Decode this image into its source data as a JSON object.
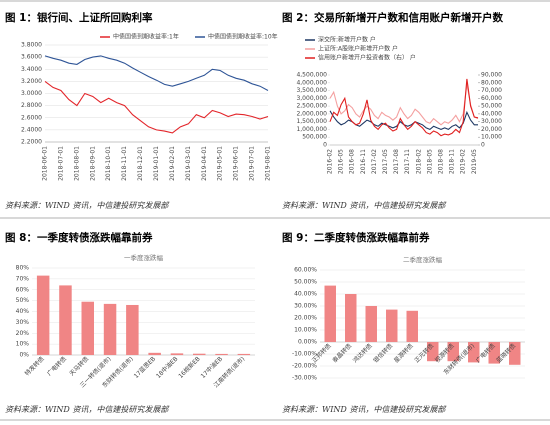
{
  "chart_data": [
    {
      "type": "line",
      "title": "图 1：银行间、上证所回购利率",
      "source": "资料来源：WIND 资讯，中信建投研究发展部",
      "grid": true,
      "legend": "top",
      "categories": [
        "2018-06-01",
        null,
        "2018-07-01",
        null,
        "2018-08-01",
        null,
        "2018-09-01",
        null,
        "2018-10-01",
        null,
        "2018-11-01",
        null,
        "2018-12-01",
        null,
        "2019-01-01",
        null,
        "2019-02-01",
        null,
        "2019-03-01",
        null,
        "2019-04-01",
        null,
        "2019-05-01",
        null,
        "2019-06-01",
        null,
        "2019-07-01",
        null,
        "2019-08-01"
      ],
      "series": [
        {
          "name": "中债国债到期收益率:1年",
          "color": "#e3262b",
          "values": [
            3.2,
            3.1,
            3.05,
            2.9,
            2.8,
            3.0,
            2.95,
            2.85,
            2.92,
            2.85,
            2.8,
            2.65,
            2.55,
            2.45,
            2.4,
            2.38,
            2.35,
            2.45,
            2.5,
            2.65,
            2.6,
            2.72,
            2.68,
            2.62,
            2.66,
            2.65,
            2.62,
            2.58,
            2.62
          ]
        },
        {
          "name": "中债国债到期收益率:10年",
          "color": "#2f5597",
          "values": [
            3.62,
            3.58,
            3.55,
            3.5,
            3.48,
            3.56,
            3.6,
            3.62,
            3.58,
            3.55,
            3.5,
            3.42,
            3.35,
            3.28,
            3.22,
            3.15,
            3.12,
            3.16,
            3.2,
            3.25,
            3.3,
            3.4,
            3.38,
            3.3,
            3.25,
            3.22,
            3.16,
            3.12,
            3.05
          ]
        }
      ],
      "ylim": [
        2.2,
        3.8
      ],
      "yticks": [
        {
          "value": 2.2,
          "label": "2.2000"
        },
        {
          "value": 2.4,
          "label": "2.4000"
        },
        {
          "value": 2.6,
          "label": "2.6000"
        },
        {
          "value": 2.8,
          "label": "2.8000"
        },
        {
          "value": 3.0,
          "label": "3.0000"
        },
        {
          "value": 3.2,
          "label": "3.2000"
        },
        {
          "value": 3.4,
          "label": "3.4000"
        },
        {
          "value": 3.6,
          "label": "3.6000"
        },
        {
          "value": 3.8,
          "label": "3.8000"
        }
      ]
    },
    {
      "type": "line",
      "title": "图 2：交易所新增开户数和信用账户新增开户数",
      "source": "资料来源：WIND 资讯，中信建投研究发展部",
      "grid": false,
      "legend": "top-left",
      "categories": [
        "2016-02",
        null,
        null,
        "2016-05",
        null,
        null,
        "2016-08",
        null,
        null,
        "2016-11",
        null,
        null,
        "2017-02",
        null,
        null,
        "2017-05",
        null,
        null,
        "2017-08",
        null,
        null,
        "2017-11",
        null,
        null,
        "2018-02",
        null,
        null,
        "2018-05",
        null,
        null,
        "2018-08",
        null,
        null,
        "2018-11",
        null,
        null,
        "2019-02",
        null,
        null,
        "2019-05",
        null
      ],
      "series": [
        {
          "name": "深交所:新增开户数 户",
          "color": "#1f3864",
          "values": [
            2200000,
            1800000,
            1500000,
            1300000,
            1400000,
            1600000,
            1500000,
            1300000,
            1200000,
            1400000,
            1600000,
            1500000,
            1300000,
            1200000,
            1400000,
            1300000,
            1200000,
            1100000,
            1200000,
            1500000,
            1300000,
            1200000,
            1300000,
            1500000,
            1400000,
            1300000,
            1100000,
            1000000,
            1200000,
            1100000,
            1000000,
            1100000,
            1000000,
            1200000,
            1300000,
            1100000,
            1400000,
            2100000,
            1600000,
            1300000,
            1300000
          ]
        },
        {
          "name": "上证所:A股账户新增开户数 户",
          "color": "#f4a0a0",
          "values": [
            3000000,
            3400000,
            2500000,
            2000000,
            2200000,
            2600000,
            2400000,
            2000000,
            1800000,
            2200000,
            2500000,
            2300000,
            1900000,
            1700000,
            2100000,
            1900000,
            1800000,
            1600000,
            1800000,
            2400000,
            2000000,
            1700000,
            1900000,
            2300000,
            2100000,
            1800000,
            1500000,
            1400000,
            1700000,
            1500000,
            1300000,
            1500000,
            1400000,
            1600000,
            1900000,
            1500000,
            2000000,
            3900000,
            2600000,
            1800000,
            1700000
          ]
        },
        {
          "name": "信用账户新增开户投资者数（右） 户",
          "color": "#e02020",
          "axis": "y2",
          "values": [
            30000,
            42000,
            38000,
            52000,
            60000,
            36000,
            30000,
            26000,
            28000,
            40000,
            58000,
            32000,
            24000,
            20000,
            26000,
            28000,
            22000,
            18000,
            20000,
            34000,
            26000,
            20000,
            24000,
            30000,
            26000,
            22000,
            16000,
            14000,
            18000,
            16000,
            12000,
            14000,
            13000,
            15000,
            20000,
            16000,
            30000,
            85000,
            50000,
            36000,
            35000
          ]
        }
      ],
      "ylim": [
        0,
        4500000
      ],
      "yticks": [
        0,
        {
          "value": 500000,
          "label": "500,000"
        },
        {
          "value": 1000000,
          "label": "1,000,000"
        },
        {
          "value": 1500000,
          "label": "1,500,000"
        },
        {
          "value": 2000000,
          "label": "2,000,000"
        },
        {
          "value": 2500000,
          "label": "2,500,000"
        },
        {
          "value": 3000000,
          "label": "3,000,000"
        },
        {
          "value": 3500000,
          "label": "3,500,000"
        },
        {
          "value": 4000000,
          "label": "4,000,000"
        },
        {
          "value": 4500000,
          "label": "4,500,000"
        }
      ],
      "y2lim": [
        0,
        90000
      ],
      "y2ticks": [
        0,
        {
          "value": 10000,
          "label": "10,000"
        },
        {
          "value": 20000,
          "label": "20,000"
        },
        {
          "value": 30000,
          "label": "30,000"
        },
        {
          "value": 40000,
          "label": "40,000"
        },
        {
          "value": 50000,
          "label": "50,000"
        },
        {
          "value": 60000,
          "label": "60,000"
        },
        {
          "value": 70000,
          "label": "70,000"
        },
        {
          "value": 80000,
          "label": "80,000"
        },
        {
          "value": 90000,
          "label": "90,000"
        }
      ]
    },
    {
      "type": "bar",
      "title": "图 8：一季度转债涨跌幅靠前券",
      "subtitle": "一季度涨跌幅",
      "source": "资料来源：WIND 资讯，中信建投研究发展部",
      "grid": true,
      "color": "#f08585",
      "categories": [
        "特发转债",
        "广电转债",
        "天马转债",
        "三一转债(退市)",
        "东财转债(退市)",
        "17蓝思EB",
        "18中油EB",
        "16皖新EB",
        "17中油EB",
        "江南转债(退市)"
      ],
      "values": [
        73,
        64,
        49,
        47,
        46,
        2,
        1.5,
        1.2,
        1,
        1
      ],
      "ylim": [
        0,
        80
      ],
      "yticks": [
        {
          "value": 0,
          "label": "0%"
        },
        {
          "value": 10,
          "label": "10%"
        },
        {
          "value": 20,
          "label": "20%"
        },
        {
          "value": 30,
          "label": "30%"
        },
        {
          "value": 40,
          "label": "40%"
        },
        {
          "value": 50,
          "label": "50%"
        },
        {
          "value": 60,
          "label": "60%"
        },
        {
          "value": 70,
          "label": "70%"
        },
        {
          "value": 80,
          "label": "80%"
        }
      ]
    },
    {
      "type": "bar",
      "title": "图 9：二季度转债涨跌幅靠前券",
      "subtitle": "二季度涨跌幅",
      "source": "资料来源：WIND 资讯，中信建投研究发展部",
      "grid": true,
      "color": "#f08585",
      "categories": [
        "正邦转债",
        "泰晶转债",
        "鸿达转债",
        "银信转债",
        "星源转债",
        "正元转债",
        "视源转债",
        "东财转债(退市)",
        "广电转债",
        "蓝晓转债"
      ],
      "values": [
        47,
        40,
        30,
        27,
        26,
        -16,
        -16,
        -17,
        -18,
        -19
      ],
      "ylim": [
        -30,
        60
      ],
      "yticks": [
        {
          "value": -30,
          "label": "-30.00%"
        },
        {
          "value": -20,
          "label": "-20.00%"
        },
        {
          "value": -10,
          "label": "-10.00%"
        },
        {
          "value": 0,
          "label": "0.00%"
        },
        {
          "value": 10,
          "label": "10.00%"
        },
        {
          "value": 20,
          "label": "20.00%"
        },
        {
          "value": 30,
          "label": "30.00%"
        },
        {
          "value": 40,
          "label": "40.00%"
        },
        {
          "value": 50,
          "label": "50.00%"
        },
        {
          "value": 60,
          "label": "60.00%"
        }
      ]
    }
  ]
}
